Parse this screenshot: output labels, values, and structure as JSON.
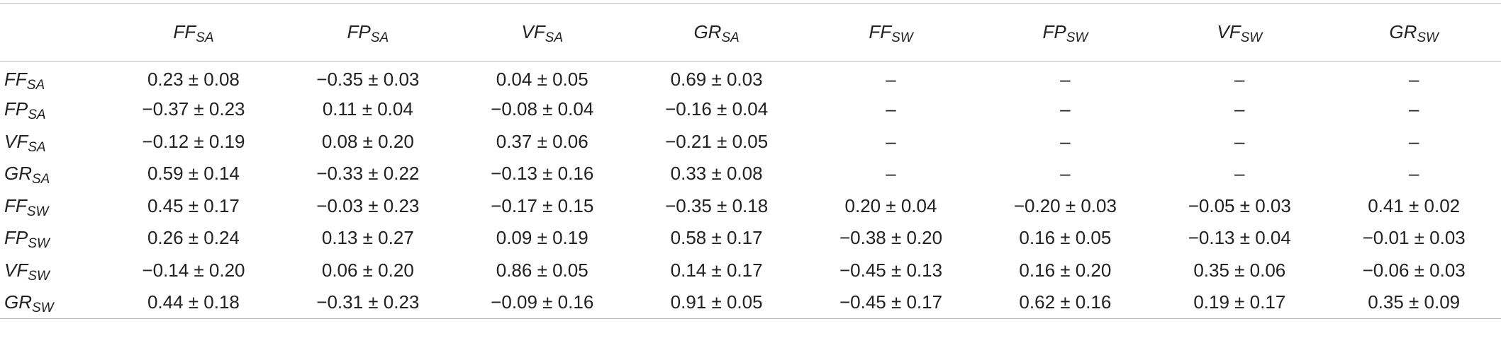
{
  "table": {
    "columns": [
      {
        "base": "FF",
        "sub": "SA"
      },
      {
        "base": "FP",
        "sub": "SA"
      },
      {
        "base": "VF",
        "sub": "SA"
      },
      {
        "base": "GR",
        "sub": "SA"
      },
      {
        "base": "FF",
        "sub": "SW"
      },
      {
        "base": "FP",
        "sub": "SW"
      },
      {
        "base": "VF",
        "sub": "SW"
      },
      {
        "base": "GR",
        "sub": "SW"
      }
    ],
    "rows": [
      {
        "label": {
          "base": "FF",
          "sub": "SA"
        },
        "cells": [
          "0.23 ± 0.08",
          "−0.35 ± 0.03",
          "0.04 ± 0.05",
          "0.69 ± 0.03",
          "–",
          "–",
          "–",
          "–"
        ]
      },
      {
        "label": {
          "base": "FP",
          "sub": "SA"
        },
        "cells": [
          "−0.37 ± 0.23",
          "0.11 ± 0.04",
          "−0.08 ± 0.04",
          "−0.16 ± 0.04",
          "–",
          "–",
          "–",
          "–"
        ]
      },
      {
        "label": {
          "base": "VF",
          "sub": "SA"
        },
        "cells": [
          "−0.12 ± 0.19",
          "0.08 ± 0.20",
          "0.37 ± 0.06",
          "−0.21 ± 0.05",
          "–",
          "–",
          "–",
          "–"
        ]
      },
      {
        "label": {
          "base": "GR",
          "sub": "SA"
        },
        "cells": [
          "0.59 ± 0.14",
          "−0.33 ± 0.22",
          "−0.13 ± 0.16",
          "0.33 ± 0.08",
          "–",
          "–",
          "–",
          "–"
        ]
      },
      {
        "label": {
          "base": "FF",
          "sub": "SW"
        },
        "cells": [
          "0.45 ± 0.17",
          "−0.03 ± 0.23",
          "−0.17 ± 0.15",
          "−0.35 ± 0.18",
          "0.20 ± 0.04",
          "−0.20 ± 0.03",
          "−0.05 ± 0.03",
          "0.41 ± 0.02"
        ]
      },
      {
        "label": {
          "base": "FP",
          "sub": "SW"
        },
        "cells": [
          "0.26 ± 0.24",
          "0.13 ± 0.27",
          "0.09 ± 0.19",
          "0.58 ± 0.17",
          "−0.38 ± 0.20",
          "0.16 ± 0.05",
          "−0.13 ± 0.04",
          "−0.01 ± 0.03"
        ]
      },
      {
        "label": {
          "base": "VF",
          "sub": "SW"
        },
        "cells": [
          "−0.14 ± 0.20",
          "0.06 ± 0.20",
          "0.86 ± 0.05",
          "0.14 ± 0.17",
          "−0.45 ± 0.13",
          "0.16 ± 0.20",
          "0.35 ± 0.06",
          "−0.06 ± 0.03"
        ]
      },
      {
        "label": {
          "base": "GR",
          "sub": "SW"
        },
        "cells": [
          "0.44 ± 0.18",
          "−0.31 ± 0.23",
          "−0.09 ± 0.16",
          "0.91 ± 0.05",
          "−0.45 ± 0.17",
          "0.62 ± 0.16",
          "0.19 ± 0.17",
          "0.35 ± 0.09"
        ]
      }
    ]
  }
}
